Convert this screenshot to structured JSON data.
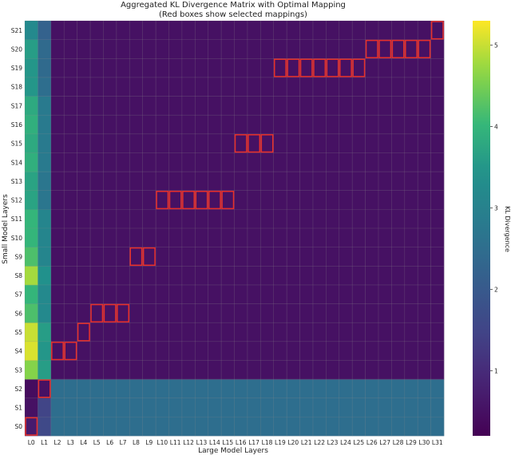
{
  "chart_data": {
    "type": "heatmap",
    "title": "Aggregated KL Divergence Matrix with Optimal Mapping",
    "subtitle": "(Red boxes show selected mappings)",
    "xlabel": "Large Model Layers",
    "ylabel": "Small Model Layers",
    "colorbar_label": "KL Divergence",
    "colormap": "viridis",
    "vmin": 0.2,
    "vmax": 5.3,
    "colorbar_ticks": [
      1,
      2,
      3,
      4,
      5
    ],
    "x_categories": [
      "L0",
      "L1",
      "L2",
      "L3",
      "L4",
      "L5",
      "L6",
      "L7",
      "L8",
      "L9",
      "L10",
      "L11",
      "L12",
      "L13",
      "L14",
      "L15",
      "L16",
      "L17",
      "L18",
      "L19",
      "L20",
      "L21",
      "L22",
      "L23",
      "L24",
      "L25",
      "L26",
      "L27",
      "L28",
      "L29",
      "L30",
      "L31"
    ],
    "y_categories": [
      "S0",
      "S1",
      "S2",
      "S3",
      "S4",
      "S5",
      "S6",
      "S7",
      "S8",
      "S9",
      "S10",
      "S11",
      "S12",
      "S13",
      "S14",
      "S15",
      "S16",
      "S17",
      "S18",
      "S19",
      "S20",
      "S21"
    ],
    "column_profile": {
      "L0": [
        0.7,
        0.5,
        0.4,
        4.6,
        5.1,
        5.0,
        4.2,
        4.0,
        4.8,
        4.2,
        4.0,
        4.0,
        3.7,
        3.7,
        3.9,
        3.8,
        3.9,
        3.8,
        3.5,
        3.5,
        3.6,
        3.2
      ],
      "L1": [
        1.6,
        1.5,
        0.5,
        3.6,
        3.5,
        3.6,
        3.2,
        3.2,
        3.4,
        3.1,
        3.1,
        3.1,
        2.7,
        2.7,
        2.8,
        2.8,
        2.8,
        2.8,
        2.5,
        2.4,
        2.4,
        2.2
      ],
      "other_columns_rows_S0_S2": 2.5,
      "other_columns_rows_S3_S21": 0.5
    },
    "selected_mappings": [
      {
        "small": "S0",
        "large": [
          "L0"
        ]
      },
      {
        "small": "S2",
        "large": [
          "L1"
        ]
      },
      {
        "small": "S4",
        "large": [
          "L2",
          "L3"
        ]
      },
      {
        "small": "S5",
        "large": [
          "L4"
        ]
      },
      {
        "small": "S6",
        "large": [
          "L5",
          "L6",
          "L7"
        ]
      },
      {
        "small": "S9",
        "large": [
          "L8",
          "L9"
        ]
      },
      {
        "small": "S12",
        "large": [
          "L10",
          "L11",
          "L12",
          "L13",
          "L14",
          "L15"
        ]
      },
      {
        "small": "S15",
        "large": [
          "L16",
          "L17",
          "L18"
        ]
      },
      {
        "small": "S19",
        "large": [
          "L19",
          "L20",
          "L21",
          "L22",
          "L23",
          "L24",
          "L25"
        ]
      },
      {
        "small": "S20",
        "large": [
          "L26",
          "L27",
          "L28",
          "L29",
          "L30"
        ]
      },
      {
        "small": "S21",
        "large": [
          "L31"
        ]
      }
    ],
    "highlight_color": "#e8302a"
  }
}
